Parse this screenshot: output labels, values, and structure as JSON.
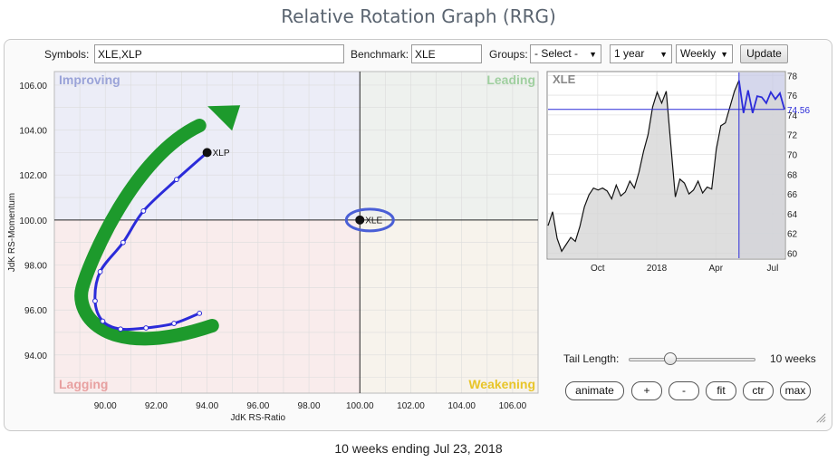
{
  "app": {
    "title": "Relative Rotation Graph (RRG)"
  },
  "toolbar": {
    "symbols_label": "Symbols:",
    "symbols_value": "XLE,XLP",
    "benchmark_label": "Benchmark:",
    "benchmark_value": "XLE",
    "groups_label": "Groups:",
    "groups_selected": "- Select -",
    "period_selected": "1 year",
    "frequency_selected": "Weekly",
    "update_label": "Update"
  },
  "rrg": {
    "quadrants": {
      "improving": "Improving",
      "leading": "Leading",
      "lagging": "Lagging",
      "weakening": "Weakening"
    },
    "colors": {
      "improving_bg": "#ecedf7",
      "leading_bg": "#eef1ee",
      "lagging_bg": "#f9ecec",
      "weakening_bg": "#f7f3ec",
      "improving_text": "#9aa3d8",
      "leading_text": "#9fcf9f",
      "lagging_text": "#e8a0a0",
      "weakening_text": "#e8c52a",
      "tail": "#2b2bd9",
      "annotation_arrow": "#1d9a2c",
      "benchmark_highlight": "#4a5fd6"
    },
    "xlabel": "JdK RS-Ratio",
    "ylabel": "JdK RS-Momentum",
    "xlim": [
      88,
      107
    ],
    "ylim": [
      92.3,
      106.6
    ],
    "x_ticks": [
      "90.00",
      "92.00",
      "94.00",
      "96.00",
      "98.00",
      "100.00",
      "102.00",
      "104.00",
      "106.00"
    ],
    "y_ticks": [
      "106.00",
      "104.00",
      "102.00",
      "100.00",
      "98.00",
      "96.00",
      "94.00"
    ],
    "series": [
      {
        "name": "XLP",
        "points": [
          [
            93.7,
            95.85
          ],
          [
            92.7,
            95.4
          ],
          [
            91.6,
            95.2
          ],
          [
            90.6,
            95.15
          ],
          [
            89.9,
            95.5
          ],
          [
            89.6,
            96.4
          ],
          [
            89.8,
            97.7
          ],
          [
            90.7,
            99.0
          ],
          [
            91.5,
            100.4
          ],
          [
            92.8,
            101.8
          ],
          [
            94.0,
            103.0
          ]
        ]
      },
      {
        "name": "XLE",
        "points": [
          [
            100.0,
            100.0
          ]
        ]
      }
    ]
  },
  "mini_chart": {
    "symbol": "XLE",
    "current_value": "74.56",
    "y_ticks": [
      "78",
      "76",
      "74",
      "72",
      "70",
      "68",
      "66",
      "64",
      "62",
      "60"
    ],
    "ylim": [
      59.5,
      78.3
    ],
    "x_ticks": [
      "Oct",
      "2018",
      "Apr",
      "Jul"
    ],
    "values": [
      62.8,
      64.2,
      61.5,
      60.2,
      60.9,
      61.6,
      61.2,
      62.7,
      64.7,
      65.9,
      66.6,
      66.4,
      66.6,
      66.3,
      65.5,
      66.9,
      65.8,
      66.2,
      67.3,
      66.6,
      68.2,
      70.3,
      72.0,
      74.8,
      76.3,
      75.2,
      76.4,
      71.0,
      65.7,
      67.5,
      67.1,
      66.0,
      66.4,
      67.3,
      66.1,
      66.7,
      66.5,
      70.5,
      72.9,
      73.2,
      74.8,
      76.4,
      77.5,
      74.2,
      76.5,
      74.2,
      75.9,
      75.8,
      75.2,
      76.3,
      75.6,
      76.2,
      74.56
    ],
    "tail_weeks": 10
  },
  "controls": {
    "tail_length_label": "Tail Length:",
    "tail_length_value": "10 weeks",
    "tail_length_fraction": 0.33,
    "buttons": [
      "animate",
      "+",
      "-",
      "fit",
      "ctr",
      "max"
    ]
  },
  "footer": {
    "text": "10 weeks ending Jul 23, 2018"
  }
}
